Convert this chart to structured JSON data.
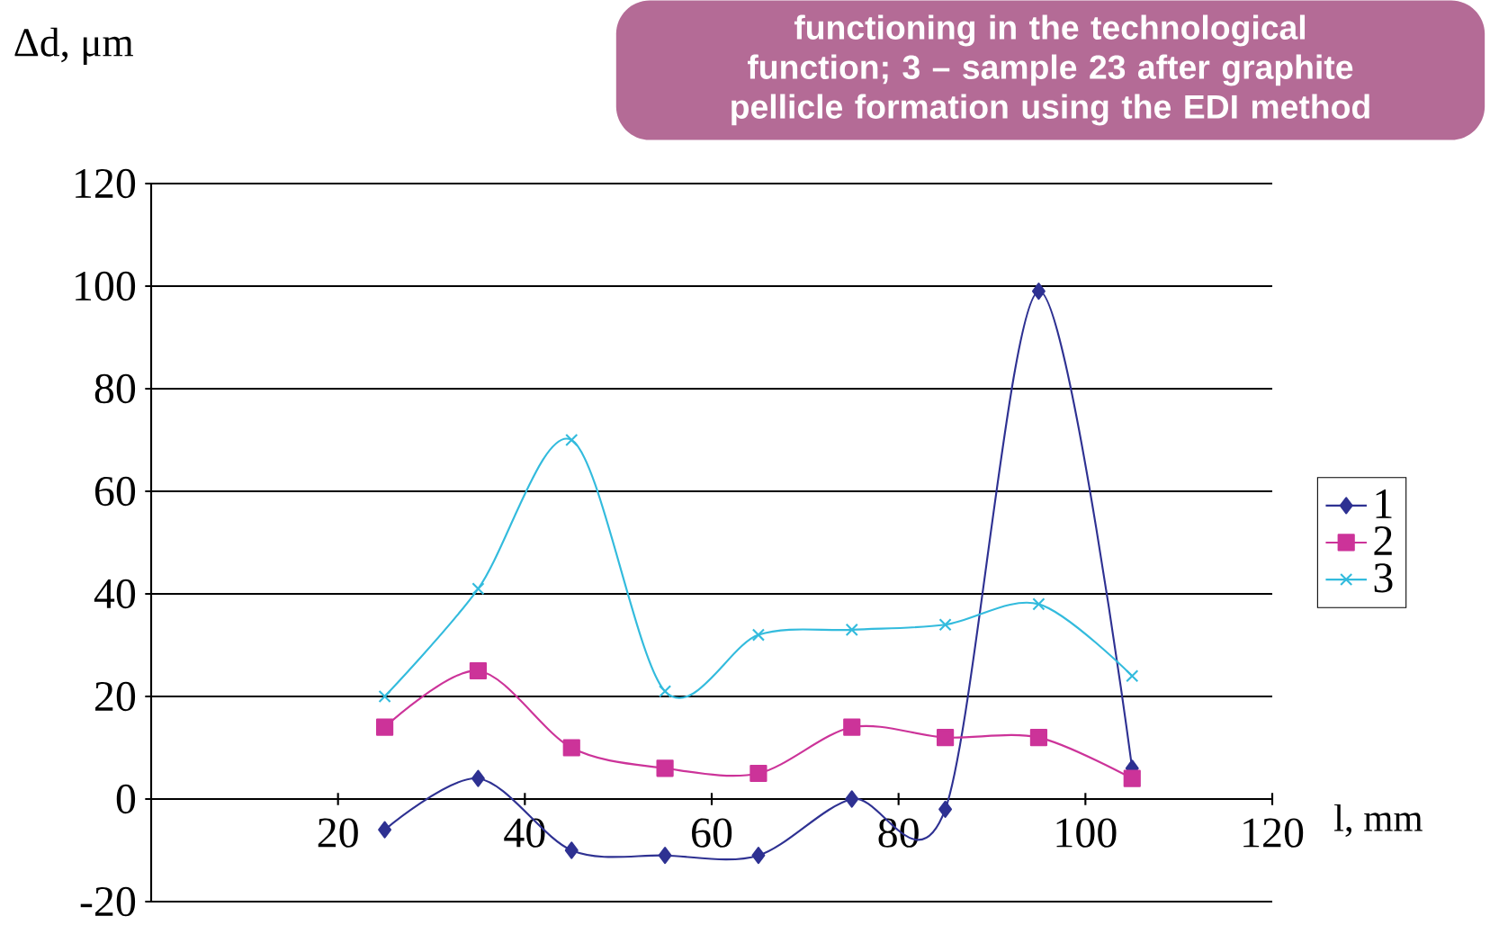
{
  "chart_data": {
    "type": "line",
    "xlabel": "l, mm",
    "ylabel": "Δd, μm",
    "annotations": [
      "functioning in the technological function; 3 – sample 23 after graphite pellicle formation using the EDI method"
    ],
    "xlim": [
      0,
      120
    ],
    "ylim": [
      -20,
      120
    ],
    "xticks": [
      20,
      40,
      60,
      80,
      100,
      120
    ],
    "yticks": [
      -20,
      0,
      20,
      40,
      60,
      80,
      100,
      120
    ],
    "grid": "y",
    "legend": "right",
    "x": [
      25,
      35,
      45,
      55,
      65,
      75,
      85,
      95,
      105
    ],
    "series": [
      {
        "name": "1",
        "color": "#2e3192",
        "marker": "diamond",
        "values": [
          -6,
          4,
          -10,
          -11,
          -11,
          0,
          -2,
          99,
          6
        ]
      },
      {
        "name": "2",
        "color": "#cc3399",
        "marker": "square",
        "values": [
          14,
          25,
          10,
          6,
          5,
          14,
          12,
          12,
          4
        ]
      },
      {
        "name": "3",
        "color": "#33bbdd",
        "marker": "cross",
        "values": [
          20,
          41,
          70,
          21,
          32,
          33,
          34,
          38,
          24
        ]
      }
    ]
  }
}
